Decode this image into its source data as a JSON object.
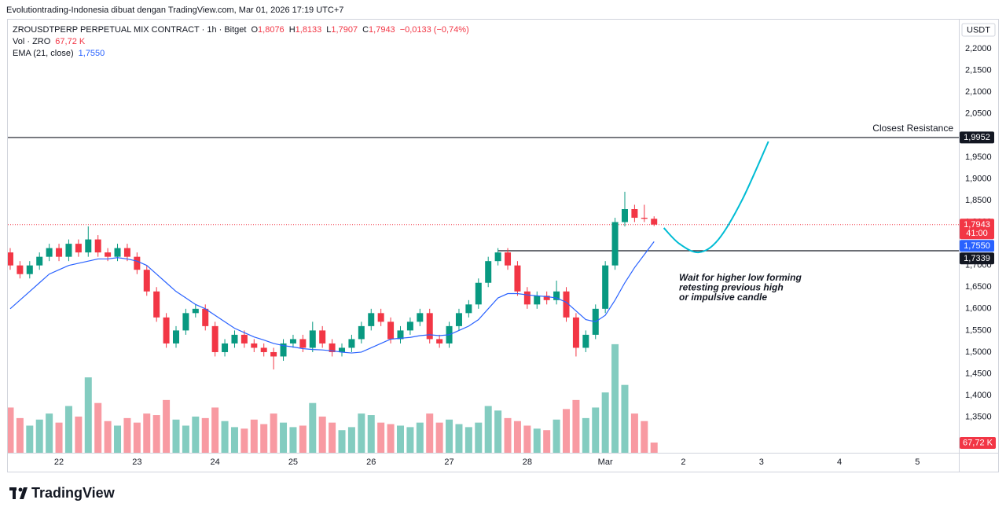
{
  "top_bar": "Evolutiontrading-Indonesia dibuat dengan TradingView.com, Mar 01, 2026 17:19 UTC+7",
  "footer_logo": "TradingView",
  "chart_data": {
    "type": "candlestick",
    "symbol": "ZROUSDTPERP PERPETUAL MIX CONTRACT · 1h · Bitget",
    "ohlc_legend": [
      {
        "key": "O",
        "text": "1,8076"
      },
      {
        "key": "H",
        "text": "1,8133"
      },
      {
        "key": "L",
        "text": "1,7907"
      },
      {
        "key": "C",
        "text": "1,7943"
      }
    ],
    "change": "−0,0133 (−0,74%)",
    "volume_legend": {
      "name": "Vol · ZRO",
      "text": "67,72 K"
    },
    "ema_legend_value": "1,7550",
    "currency": "USDT",
    "up_color": "#089981",
    "down_color": "#f23645",
    "x": [
      21.375,
      21.5,
      21.625,
      21.75,
      21.875,
      22,
      22.125,
      22.25,
      22.375,
      22.5,
      22.625,
      22.75,
      22.875,
      23,
      23.125,
      23.25,
      23.375,
      23.5,
      23.625,
      23.75,
      23.875,
      24,
      24.125,
      24.25,
      24.375,
      24.5,
      24.625,
      24.75,
      24.875,
      25,
      25.125,
      25.25,
      25.375,
      25.5,
      25.625,
      25.75,
      25.875,
      26,
      26.125,
      26.25,
      26.375,
      26.5,
      26.625,
      26.75,
      26.875,
      27,
      27.125,
      27.25,
      27.375,
      27.5,
      27.625,
      27.75,
      27.875,
      28,
      28.125,
      28.25,
      28.375,
      28.5,
      28.625,
      28.75,
      28.875,
      29,
      29.125,
      29.25,
      29.375,
      29.5,
      29.625
    ],
    "open": [
      1.73,
      1.7,
      1.68,
      1.7,
      1.72,
      1.74,
      1.72,
      1.75,
      1.73,
      1.76,
      1.73,
      1.72,
      1.74,
      1.72,
      1.69,
      1.64,
      1.58,
      1.52,
      1.55,
      1.59,
      1.6,
      1.56,
      1.5,
      1.52,
      1.54,
      1.52,
      1.51,
      1.5,
      1.49,
      1.52,
      1.53,
      1.51,
      1.55,
      1.52,
      1.5,
      1.51,
      1.53,
      1.56,
      1.59,
      1.57,
      1.53,
      1.55,
      1.57,
      1.59,
      1.53,
      1.52,
      1.56,
      1.59,
      1.61,
      1.66,
      1.71,
      1.73,
      1.7,
      1.64,
      1.61,
      1.63,
      1.62,
      1.64,
      1.58,
      1.51,
      1.54,
      1.6,
      1.7,
      1.8,
      1.83,
      1.81,
      1.8076
    ],
    "high": [
      1.74,
      1.71,
      1.71,
      1.73,
      1.75,
      1.75,
      1.76,
      1.76,
      1.79,
      1.77,
      1.74,
      1.75,
      1.75,
      1.73,
      1.7,
      1.65,
      1.59,
      1.56,
      1.6,
      1.61,
      1.61,
      1.57,
      1.53,
      1.55,
      1.55,
      1.53,
      1.52,
      1.51,
      1.53,
      1.54,
      1.54,
      1.57,
      1.56,
      1.53,
      1.52,
      1.54,
      1.57,
      1.6,
      1.6,
      1.58,
      1.56,
      1.58,
      1.6,
      1.6,
      1.54,
      1.57,
      1.6,
      1.62,
      1.67,
      1.72,
      1.74,
      1.74,
      1.71,
      1.65,
      1.64,
      1.64,
      1.665,
      1.65,
      1.59,
      1.55,
      1.61,
      1.71,
      1.81,
      1.87,
      1.84,
      1.84,
      1.8133
    ],
    "low": [
      1.69,
      1.67,
      1.67,
      1.69,
      1.71,
      1.71,
      1.71,
      1.72,
      1.72,
      1.72,
      1.71,
      1.71,
      1.71,
      1.68,
      1.63,
      1.57,
      1.51,
      1.51,
      1.54,
      1.58,
      1.55,
      1.49,
      1.49,
      1.51,
      1.51,
      1.5,
      1.49,
      1.46,
      1.48,
      1.51,
      1.5,
      1.5,
      1.51,
      1.49,
      1.49,
      1.5,
      1.52,
      1.55,
      1.56,
      1.52,
      1.52,
      1.54,
      1.56,
      1.52,
      1.51,
      1.51,
      1.55,
      1.58,
      1.6,
      1.65,
      1.7,
      1.69,
      1.63,
      1.6,
      1.6,
      1.61,
      1.61,
      1.57,
      1.49,
      1.5,
      1.53,
      1.59,
      1.69,
      1.79,
      1.8,
      1.8,
      1.7907
    ],
    "close": [
      1.7,
      1.68,
      1.7,
      1.72,
      1.74,
      1.72,
      1.75,
      1.73,
      1.76,
      1.73,
      1.72,
      1.74,
      1.72,
      1.69,
      1.64,
      1.58,
      1.52,
      1.55,
      1.59,
      1.6,
      1.56,
      1.5,
      1.52,
      1.54,
      1.52,
      1.51,
      1.5,
      1.49,
      1.52,
      1.53,
      1.51,
      1.55,
      1.52,
      1.5,
      1.51,
      1.53,
      1.56,
      1.59,
      1.57,
      1.53,
      1.55,
      1.57,
      1.59,
      1.53,
      1.52,
      1.56,
      1.59,
      1.61,
      1.66,
      1.71,
      1.73,
      1.7,
      1.64,
      1.61,
      1.63,
      1.62,
      1.64,
      1.58,
      1.51,
      1.54,
      1.6,
      1.7,
      1.8,
      1.83,
      1.81,
      1.8076,
      1.7943
    ],
    "series": [
      {
        "name": "EMA (21, close)",
        "color": "#2962ff",
        "values": [
          1.6,
          1.62,
          1.64,
          1.66,
          1.68,
          1.69,
          1.7,
          1.705,
          1.71,
          1.715,
          1.715,
          1.718,
          1.715,
          1.71,
          1.7,
          1.68,
          1.66,
          1.64,
          1.625,
          1.61,
          1.6,
          1.585,
          1.57,
          1.555,
          1.545,
          1.535,
          1.528,
          1.52,
          1.515,
          1.512,
          1.508,
          1.506,
          1.505,
          1.503,
          1.5,
          1.498,
          1.5,
          1.51,
          1.52,
          1.53,
          1.532,
          1.534,
          1.538,
          1.54,
          1.538,
          1.54,
          1.55,
          1.56,
          1.575,
          1.6,
          1.625,
          1.635,
          1.635,
          1.632,
          1.63,
          1.628,
          1.625,
          1.615,
          1.595,
          1.575,
          1.57,
          1.585,
          1.62,
          1.66,
          1.695,
          1.725,
          1.755
        ]
      }
    ],
    "volume": {
      "values": [
        300,
        230,
        180,
        220,
        260,
        200,
        310,
        240,
        500,
        330,
        210,
        180,
        230,
        200,
        260,
        250,
        350,
        220,
        180,
        240,
        230,
        300,
        210,
        170,
        160,
        220,
        190,
        260,
        200,
        170,
        180,
        330,
        240,
        200,
        150,
        170,
        260,
        250,
        200,
        190,
        180,
        170,
        200,
        260,
        200,
        220,
        190,
        170,
        200,
        310,
        280,
        230,
        210,
        180,
        160,
        150,
        220,
        290,
        350,
        230,
        300,
        400,
        720,
        450,
        260,
        210,
        67.72
      ],
      "value_labels": [
        null,
        null,
        null,
        null,
        null,
        null,
        null,
        null,
        null,
        null,
        null,
        null,
        null,
        null,
        null,
        null,
        null,
        null,
        null,
        null,
        null,
        null,
        null,
        null,
        null,
        null,
        null,
        null,
        null,
        null,
        null,
        null,
        null,
        null,
        null,
        null,
        null,
        null,
        null,
        null,
        null,
        null,
        null,
        null,
        null,
        null,
        null,
        null,
        null,
        null,
        null,
        null,
        null,
        null,
        null,
        null,
        null,
        null,
        null,
        null,
        null,
        null,
        null,
        null,
        null,
        null,
        "67,72 K"
      ],
      "ylim": [
        0,
        1100
      ]
    },
    "xlim": [
      21.345,
      33.53
    ],
    "xticks": [
      22,
      23,
      24,
      25,
      26,
      27,
      28,
      {
        "value": 29,
        "label": "Mar"
      },
      {
        "value": 30,
        "label": "2"
      },
      {
        "value": 31,
        "label": "3"
      },
      {
        "value": 32,
        "label": "4"
      },
      {
        "value": 33,
        "label": "5"
      }
    ],
    "ylim": [
      1.2678,
      2.2671
    ],
    "yticks": [
      {
        "value": 1.35,
        "label": "1,3500"
      },
      {
        "value": 1.4,
        "label": "1,4000"
      },
      {
        "value": 1.45,
        "label": "1,4500"
      },
      {
        "value": 1.5,
        "label": "1,5000"
      },
      {
        "value": 1.55,
        "label": "1,5500"
      },
      {
        "value": 1.6,
        "label": "1,6000"
      },
      {
        "value": 1.65,
        "label": "1,6500"
      },
      {
        "value": 1.7,
        "label": "1,7000"
      },
      {
        "value": 1.75,
        "label": "1,7500"
      },
      {
        "value": 1.8,
        "label": "1,8000"
      },
      {
        "value": 1.85,
        "label": "1,8500"
      },
      {
        "value": 1.9,
        "label": "1,9000"
      },
      {
        "value": 1.95,
        "label": "1,9500"
      },
      {
        "value": 2.0,
        "label": "2,0000"
      },
      {
        "value": 2.05,
        "label": "2,0500"
      },
      {
        "value": 2.1,
        "label": "2,1000"
      },
      {
        "value": 2.15,
        "label": "2,1500"
      },
      {
        "value": 2.2,
        "label": "2,2000"
      }
    ],
    "grid": false,
    "price_tags": [
      {
        "value": 1.9952,
        "label": "1,9952",
        "color": "#131722",
        "line": "solid"
      },
      {
        "value": 1.7943,
        "label": "1,7943",
        "color": "#f23645",
        "line": "dotted",
        "countdown": "41:00"
      },
      {
        "value": 1.755,
        "label": "1,7550",
        "color": "#2962ff"
      },
      {
        "value": 1.7339,
        "label": "1,7339",
        "color": "#131722",
        "line": "solid",
        "x_start": 27.625
      }
    ],
    "projection": {
      "color": "#00bcd4",
      "x": [
        29.75,
        29.95,
        30.2,
        30.45,
        30.75,
        31.09
      ],
      "y": [
        1.7865,
        1.75,
        1.7303,
        1.76,
        1.85,
        1.986
      ]
    },
    "resistance_label": "Closest Resistance",
    "note": [
      "Wait for higher low forming",
      "retesting previous high",
      "or impulsive candle"
    ]
  }
}
